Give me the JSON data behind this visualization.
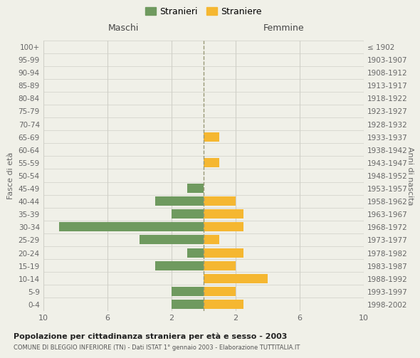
{
  "age_groups": [
    "0-4",
    "5-9",
    "10-14",
    "15-19",
    "20-24",
    "25-29",
    "30-34",
    "35-39",
    "40-44",
    "45-49",
    "50-54",
    "55-59",
    "60-64",
    "65-69",
    "70-74",
    "75-79",
    "80-84",
    "85-89",
    "90-94",
    "95-99",
    "100+"
  ],
  "birth_years": [
    "1998-2002",
    "1993-1997",
    "1988-1992",
    "1983-1987",
    "1978-1982",
    "1973-1977",
    "1968-1972",
    "1963-1967",
    "1958-1962",
    "1953-1957",
    "1948-1952",
    "1943-1947",
    "1938-1942",
    "1933-1937",
    "1928-1932",
    "1923-1927",
    "1918-1922",
    "1913-1917",
    "1908-1912",
    "1903-1907",
    "≤ 1902"
  ],
  "males": [
    2,
    2,
    0,
    3,
    1,
    4,
    9,
    2,
    3,
    1,
    0,
    0,
    0,
    0,
    0,
    0,
    0,
    0,
    0,
    0,
    0
  ],
  "females": [
    2.5,
    2,
    4,
    2,
    2.5,
    1,
    2.5,
    2.5,
    2,
    0,
    0,
    1,
    0,
    1,
    0,
    0,
    0,
    0,
    0,
    0,
    0
  ],
  "male_color": "#6f9a5f",
  "female_color": "#f5b731",
  "background_color": "#f0f0e8",
  "grid_color": "#d0d0c8",
  "zero_line_color": "#999977",
  "xlim": 10,
  "title": "Popolazione per cittadinanza straniera per età e sesso - 2003",
  "subtitle": "COMUNE DI BLEGGIO INFERIORE (TN) - Dati ISTAT 1° gennaio 2003 - Elaborazione TUTTITALIA.IT",
  "ylabel_left": "Fasce di età",
  "ylabel_right": "Anni di nascita",
  "legend_male": "Stranieri",
  "legend_female": "Straniere",
  "header_left": "Maschi",
  "header_right": "Femmine"
}
